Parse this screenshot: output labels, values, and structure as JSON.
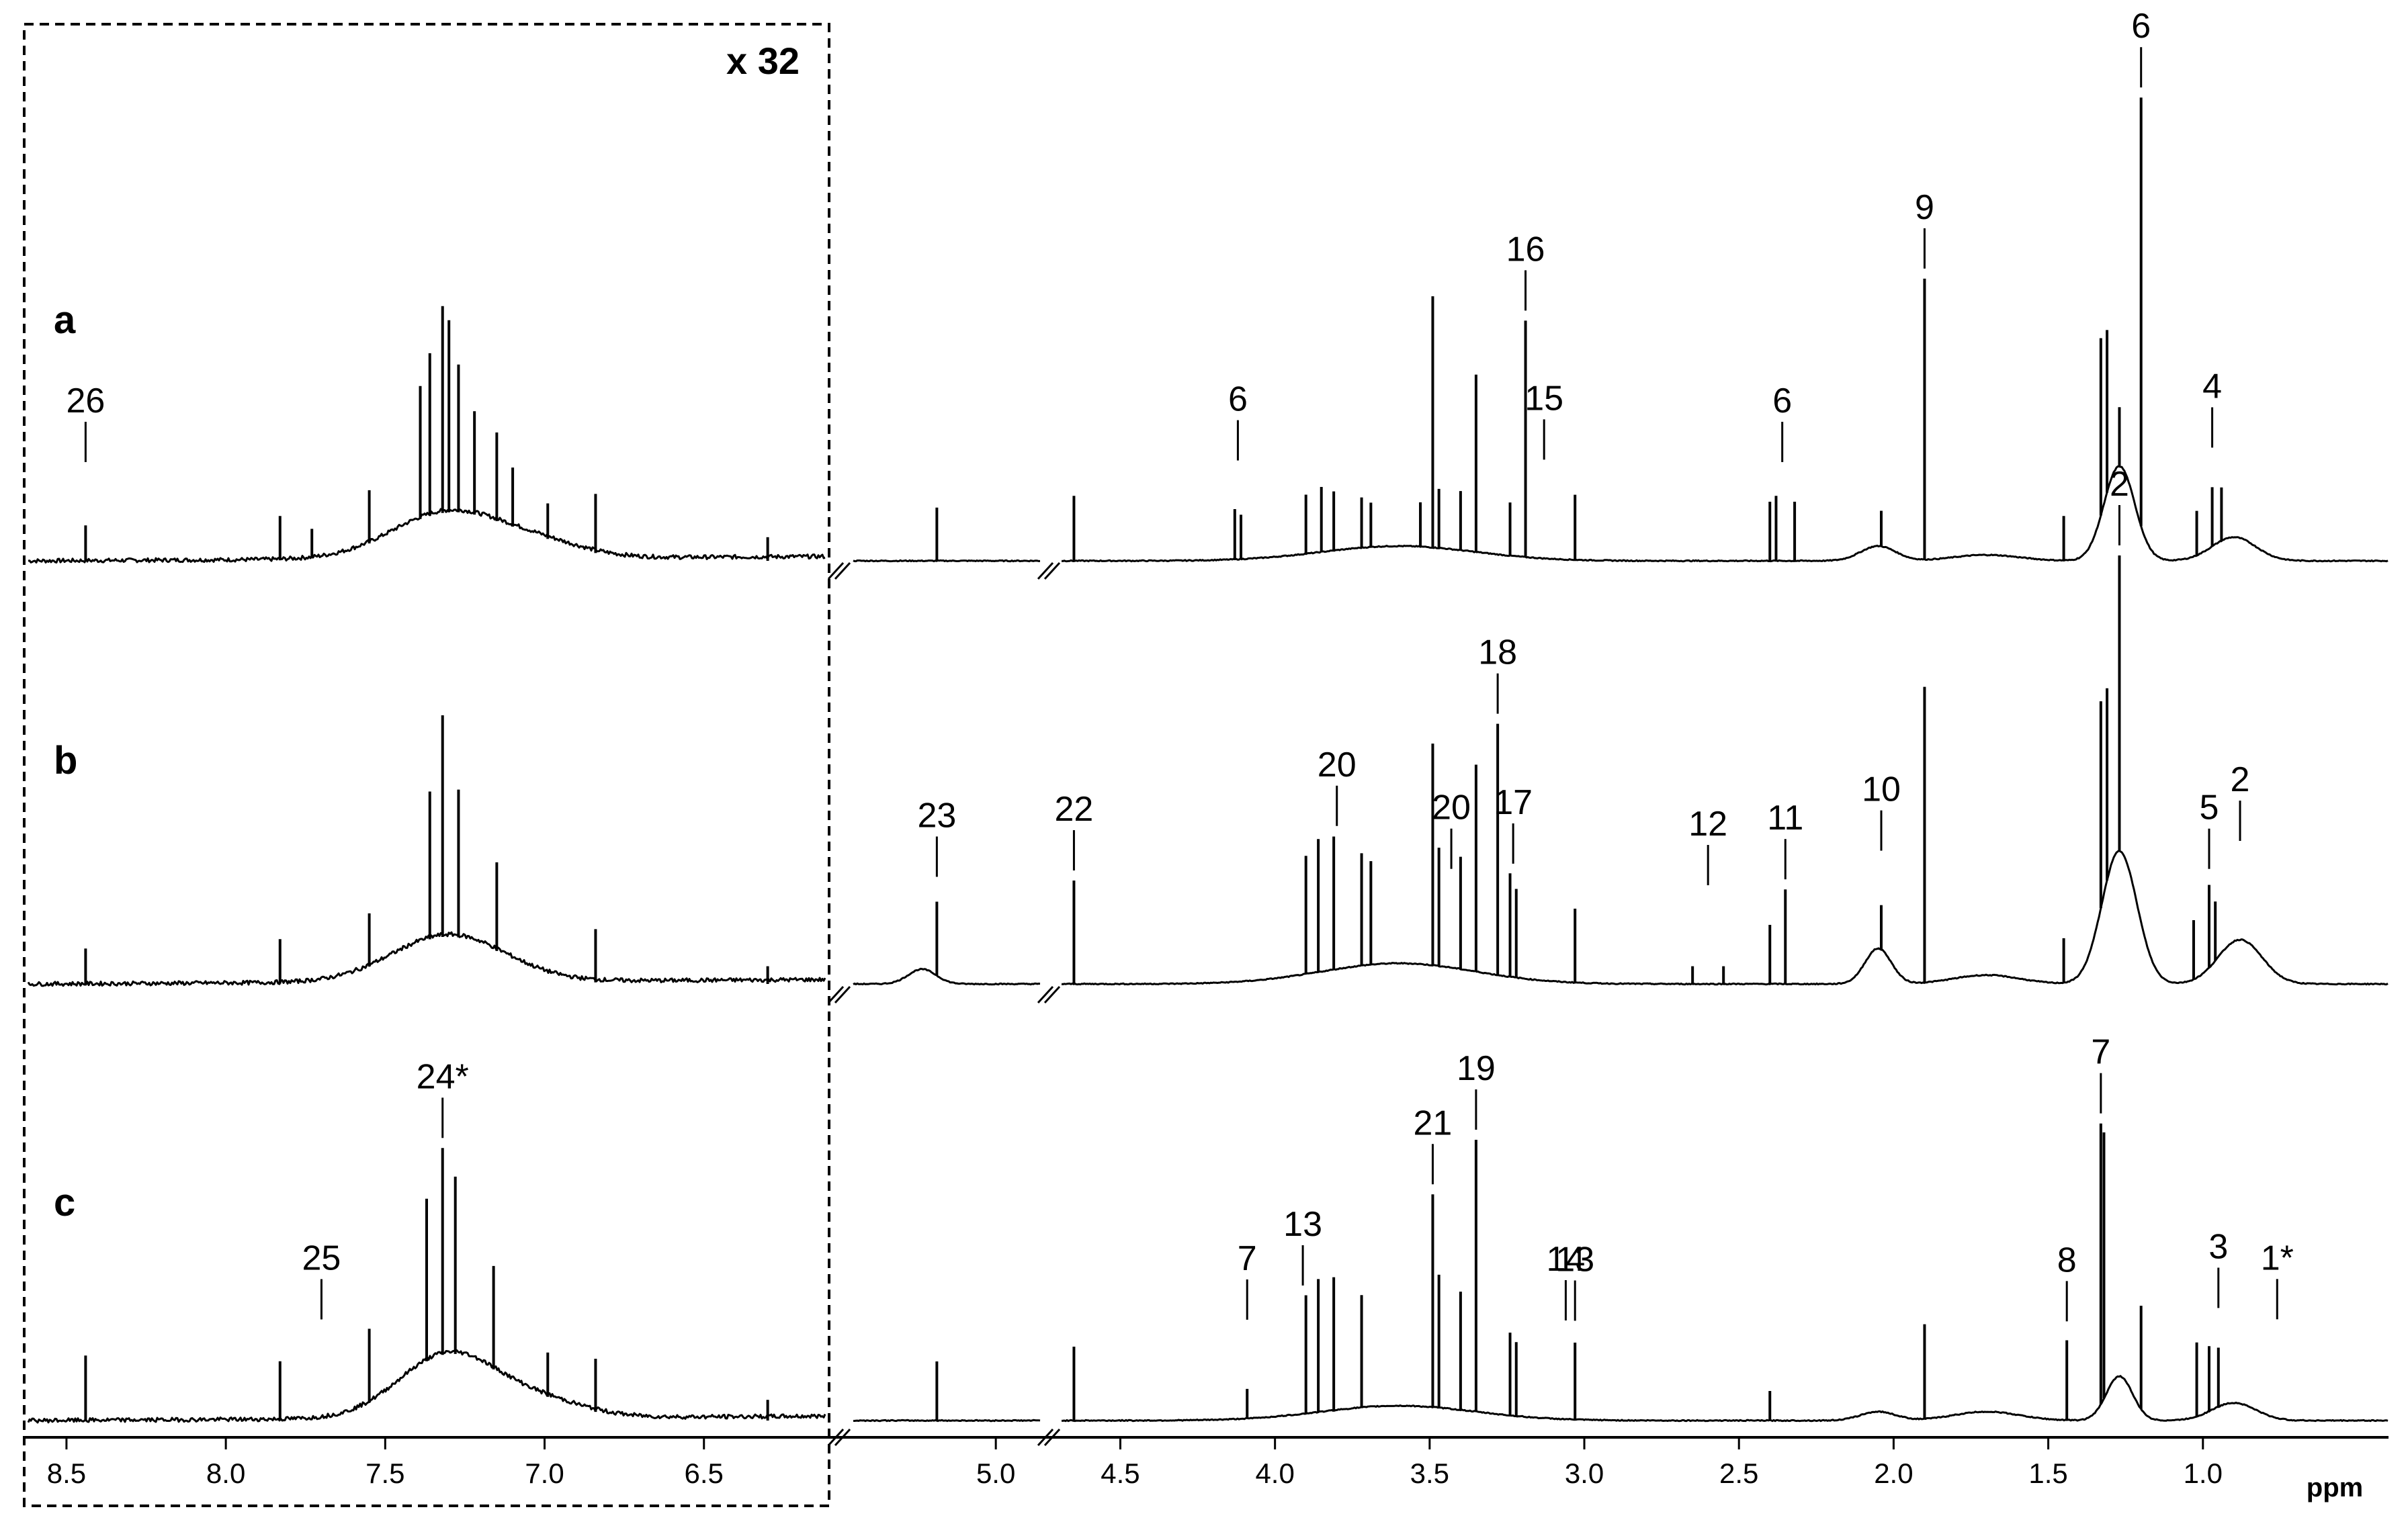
{
  "figure": {
    "scale_label": "x 32",
    "axis_unit": "ppm",
    "panel_labels": [
      "a",
      "b",
      "c"
    ]
  },
  "chart_data": {
    "type": "line",
    "title": "",
    "xlabel": "ppm",
    "ylabel": "",
    "x_reversed": true,
    "grid": false,
    "legend": "none",
    "axis_segments": [
      {
        "name": "aromatic",
        "xlim": [
          8.62,
          6.12
        ],
        "ticks": [
          8.5,
          8.0,
          7.5,
          7.0,
          6.5
        ],
        "tick_labels": [
          "8.5",
          "8.0",
          "7.5",
          "7.0",
          "6.5"
        ],
        "y_scale_factor": 32
      },
      {
        "name": "anomeric",
        "xlim": [
          5.58,
          4.82
        ],
        "ticks": [
          5.0
        ],
        "tick_labels": [
          "5.0"
        ]
      },
      {
        "name": "aliphatic",
        "xlim": [
          4.69,
          0.4
        ],
        "ticks": [
          4.5,
          4.0,
          3.5,
          3.0,
          2.5,
          2.0,
          1.5,
          1.0
        ],
        "tick_labels": [
          "4.5",
          "4.0",
          "3.5",
          "3.0",
          "2.5",
          "2.0",
          "1.5",
          "1.0"
        ]
      }
    ],
    "series": [
      {
        "name": "a",
        "peaks": [
          [
            8.44,
            0.12
          ],
          [
            7.83,
            0.15
          ],
          [
            7.73,
            0.1
          ],
          [
            7.55,
            0.18
          ],
          [
            7.39,
            0.45
          ],
          [
            7.36,
            0.55
          ],
          [
            7.32,
            0.7
          ],
          [
            7.3,
            0.65
          ],
          [
            7.27,
            0.5
          ],
          [
            7.22,
            0.35
          ],
          [
            7.15,
            0.3
          ],
          [
            7.1,
            0.2
          ],
          [
            6.99,
            0.12
          ],
          [
            6.84,
            0.2
          ],
          [
            6.3,
            0.08
          ],
          [
            5.24,
            0.18
          ],
          [
            4.65,
            0.22
          ],
          [
            4.13,
            0.17
          ],
          [
            4.11,
            0.15
          ],
          [
            3.9,
            0.2
          ],
          [
            3.85,
            0.22
          ],
          [
            3.81,
            0.2
          ],
          [
            3.72,
            0.17
          ],
          [
            3.69,
            0.15
          ],
          [
            3.53,
            0.15
          ],
          [
            3.49,
            0.85
          ],
          [
            3.47,
            0.2
          ],
          [
            3.4,
            0.2
          ],
          [
            3.35,
            0.6
          ],
          [
            3.24,
            0.18
          ],
          [
            3.19,
            0.8
          ],
          [
            3.03,
            0.22
          ],
          [
            2.4,
            0.2
          ],
          [
            2.38,
            0.22
          ],
          [
            2.32,
            0.2
          ],
          [
            1.9,
            0.95
          ],
          [
            2.04,
            0.12
          ],
          [
            1.45,
            0.15
          ],
          [
            1.33,
            0.6
          ],
          [
            1.31,
            0.55
          ],
          [
            1.2,
            1.45
          ],
          [
            1.27,
            0.2
          ],
          [
            1.02,
            0.15
          ],
          [
            0.97,
            0.2
          ],
          [
            0.94,
            0.18
          ]
        ],
        "annotations": [
          {
            "label": "26",
            "x": 8.44
          },
          {
            "label": "6",
            "x": 4.12
          },
          {
            "label": "16",
            "x": 3.19
          },
          {
            "label": "15",
            "x": 3.13
          },
          {
            "label": "6",
            "x": 2.36
          },
          {
            "label": "9",
            "x": 1.9
          },
          {
            "label": "6",
            "x": 1.2
          },
          {
            "label": "4",
            "x": 0.97
          }
        ]
      },
      {
        "name": "b",
        "peaks": [
          [
            8.44,
            0.12
          ],
          [
            7.83,
            0.15
          ],
          [
            7.55,
            0.18
          ],
          [
            7.36,
            0.5
          ],
          [
            7.32,
            0.75
          ],
          [
            7.27,
            0.5
          ],
          [
            7.15,
            0.3
          ],
          [
            6.84,
            0.18
          ],
          [
            6.3,
            0.06
          ],
          [
            5.24,
            0.25
          ],
          [
            4.65,
            0.35
          ],
          [
            3.9,
            0.4
          ],
          [
            3.86,
            0.45
          ],
          [
            3.81,
            0.45
          ],
          [
            3.72,
            0.38
          ],
          [
            3.69,
            0.35
          ],
          [
            3.49,
            0.75
          ],
          [
            3.47,
            0.4
          ],
          [
            3.4,
            0.38
          ],
          [
            3.35,
            0.7
          ],
          [
            3.28,
            0.85
          ],
          [
            3.24,
            0.35
          ],
          [
            3.22,
            0.3
          ],
          [
            3.03,
            0.25
          ],
          [
            2.65,
            0.06
          ],
          [
            2.55,
            0.06
          ],
          [
            2.4,
            0.2
          ],
          [
            2.35,
            0.32
          ],
          [
            2.04,
            0.15
          ],
          [
            1.9,
            1.0
          ],
          [
            1.45,
            0.15
          ],
          [
            1.33,
            0.7
          ],
          [
            1.31,
            0.65
          ],
          [
            1.27,
            1.0
          ],
          [
            1.03,
            0.2
          ],
          [
            0.98,
            0.28
          ],
          [
            0.96,
            0.2
          ]
        ],
        "annotations": [
          {
            "label": "23",
            "x": 5.24
          },
          {
            "label": "22",
            "x": 4.65
          },
          {
            "label": "20",
            "x": 3.8
          },
          {
            "label": "20",
            "x": 3.43
          },
          {
            "label": "18",
            "x": 3.28
          },
          {
            "label": "17",
            "x": 3.23
          },
          {
            "label": "12",
            "x": 2.6
          },
          {
            "label": "11",
            "x": 2.35
          },
          {
            "label": "10",
            "x": 2.04
          },
          {
            "label": "2",
            "x": 1.27
          },
          {
            "label": "5",
            "x": 0.98
          },
          {
            "label": "2",
            "x": 0.88
          }
        ]
      },
      {
        "name": "c",
        "peaks": [
          [
            8.44,
            0.22
          ],
          [
            7.83,
            0.2
          ],
          [
            7.55,
            0.25
          ],
          [
            7.37,
            0.55
          ],
          [
            7.32,
            0.7
          ],
          [
            7.28,
            0.6
          ],
          [
            7.16,
            0.35
          ],
          [
            6.99,
            0.15
          ],
          [
            6.84,
            0.18
          ],
          [
            6.3,
            0.07
          ],
          [
            5.24,
            0.2
          ],
          [
            4.65,
            0.25
          ],
          [
            4.09,
            0.1
          ],
          [
            3.9,
            0.4
          ],
          [
            3.86,
            0.45
          ],
          [
            3.81,
            0.45
          ],
          [
            3.72,
            0.38
          ],
          [
            3.49,
            0.72
          ],
          [
            3.47,
            0.45
          ],
          [
            3.4,
            0.4
          ],
          [
            3.35,
            0.92
          ],
          [
            3.24,
            0.28
          ],
          [
            3.22,
            0.25
          ],
          [
            3.03,
            0.26
          ],
          [
            2.4,
            0.1
          ],
          [
            1.9,
            0.32
          ],
          [
            1.44,
            0.27
          ],
          [
            1.33,
            0.95
          ],
          [
            1.32,
            0.9
          ],
          [
            1.2,
            0.35
          ],
          [
            1.02,
            0.25
          ],
          [
            0.98,
            0.22
          ],
          [
            0.95,
            0.2
          ]
        ],
        "annotations": [
          {
            "label": "7",
            "x": 4.09
          },
          {
            "label": "13",
            "x": 3.91
          },
          {
            "label": "21",
            "x": 3.49
          },
          {
            "label": "19",
            "x": 3.35
          },
          {
            "label": "14",
            "x": 3.06
          },
          {
            "label": "13",
            "x": 3.03
          },
          {
            "label": "8",
            "x": 1.44
          },
          {
            "label": "7",
            "x": 1.33
          },
          {
            "label": "3",
            "x": 0.95
          },
          {
            "label": "1*",
            "x": 0.76
          },
          {
            "label": "25",
            "x": 7.7
          },
          {
            "label": "24*",
            "x": 7.32
          }
        ]
      }
    ]
  }
}
